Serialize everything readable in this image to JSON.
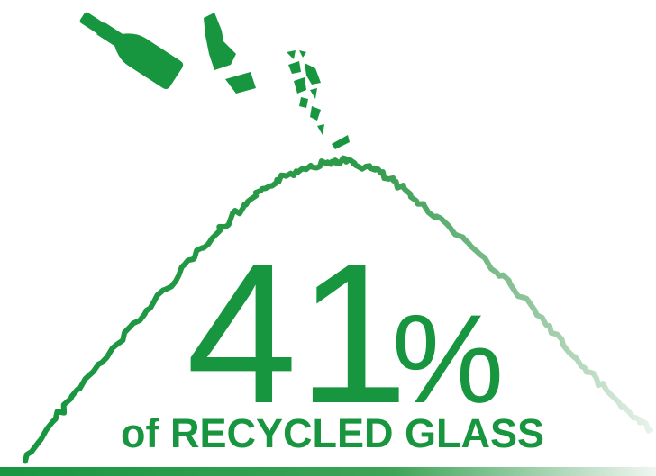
{
  "headline": {
    "number": "41",
    "unit": "%"
  },
  "caption": "of RECYCLED GLASS"
}
